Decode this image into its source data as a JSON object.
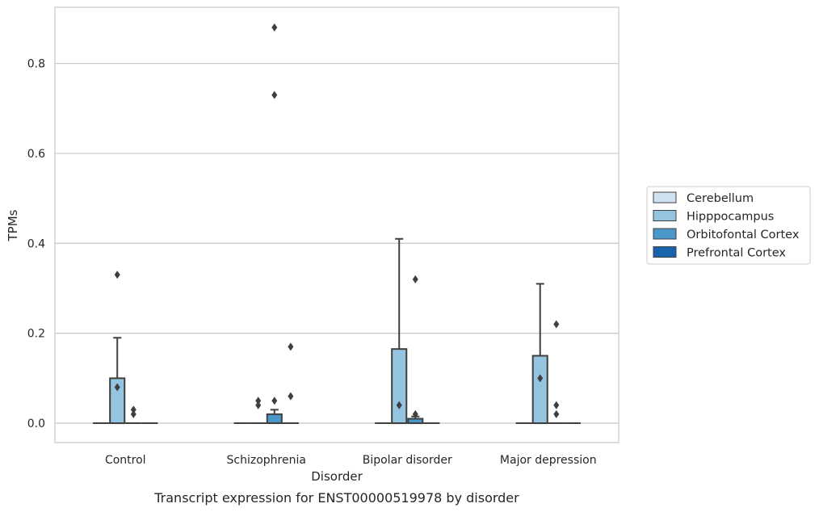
{
  "chart_data": {
    "type": "box",
    "caption": "Transcript expression for ENST00000519978 by disorder",
    "xlabel": "Disorder",
    "ylabel": "TPMs",
    "ylim": [
      -0.043,
      0.925
    ],
    "yticks": [
      0.0,
      0.2,
      0.4,
      0.6,
      0.8
    ],
    "ytick_labels": [
      "0.0",
      "0.2",
      "0.4",
      "0.6",
      "0.8"
    ],
    "grid": "horizontal",
    "legend_position": "right",
    "categories": [
      "Control",
      "Schizophrenia",
      "Bipolar disorder",
      "Major depression"
    ],
    "series": [
      {
        "name": "Cerebellum",
        "color": "#d0e1f2",
        "boxes": [
          {
            "q1": 0,
            "median": 0,
            "q3": 0,
            "whisker_low": 0,
            "whisker_high": 0,
            "outliers": []
          },
          {
            "q1": 0,
            "median": 0,
            "q3": 0,
            "whisker_low": 0,
            "whisker_high": 0,
            "outliers": []
          },
          {
            "q1": 0,
            "median": 0,
            "q3": 0,
            "whisker_low": 0,
            "whisker_high": 0,
            "outliers": []
          },
          {
            "q1": 0,
            "median": 0,
            "q3": 0,
            "whisker_low": 0,
            "whisker_high": 0,
            "outliers": []
          }
        ]
      },
      {
        "name": "Hipppocampus",
        "color": "#94c4df",
        "boxes": [
          {
            "q1": 0,
            "median": 0,
            "q3": 0.1,
            "whisker_low": 0,
            "whisker_high": 0.19,
            "outliers": [
              0.08,
              0.33
            ]
          },
          {
            "q1": 0,
            "median": 0,
            "q3": 0,
            "whisker_low": 0,
            "whisker_high": 0,
            "outliers": [
              0.05,
              0.04
            ]
          },
          {
            "q1": 0,
            "median": 0,
            "q3": 0.165,
            "whisker_low": 0,
            "whisker_high": 0.41,
            "outliers": [
              0.04
            ]
          },
          {
            "q1": 0,
            "median": 0,
            "q3": 0.15,
            "whisker_low": 0,
            "whisker_high": 0.31,
            "outliers": [
              0.1
            ]
          }
        ]
      },
      {
        "name": "Orbitofontal Cortex",
        "color": "#4a98c9",
        "boxes": [
          {
            "q1": 0,
            "median": 0,
            "q3": 0,
            "whisker_low": 0,
            "whisker_high": 0,
            "outliers": [
              0.03,
              0.02
            ]
          },
          {
            "q1": 0,
            "median": 0,
            "q3": 0.02,
            "whisker_low": 0,
            "whisker_high": 0.03,
            "outliers": [
              0.88,
              0.73,
              0.05
            ]
          },
          {
            "q1": 0,
            "median": 0,
            "q3": 0.01,
            "whisker_low": 0,
            "whisker_high": 0.015,
            "outliers": [
              0.32,
              0.02
            ]
          },
          {
            "q1": 0,
            "median": 0,
            "q3": 0,
            "whisker_low": 0,
            "whisker_high": 0,
            "outliers": [
              0.22,
              0.04,
              0.02
            ]
          }
        ]
      },
      {
        "name": "Prefrontal Cortex",
        "color": "#1764ab",
        "boxes": [
          {
            "q1": 0,
            "median": 0,
            "q3": 0,
            "whisker_low": 0,
            "whisker_high": 0,
            "outliers": []
          },
          {
            "q1": 0,
            "median": 0,
            "q3": 0,
            "whisker_low": 0,
            "whisker_high": 0,
            "outliers": [
              0.17,
              0.06
            ]
          },
          {
            "q1": 0,
            "median": 0,
            "q3": 0,
            "whisker_low": 0,
            "whisker_high": 0,
            "outliers": []
          },
          {
            "q1": 0,
            "median": 0,
            "q3": 0,
            "whisker_low": 0,
            "whisker_high": 0,
            "outliers": []
          }
        ]
      }
    ]
  }
}
